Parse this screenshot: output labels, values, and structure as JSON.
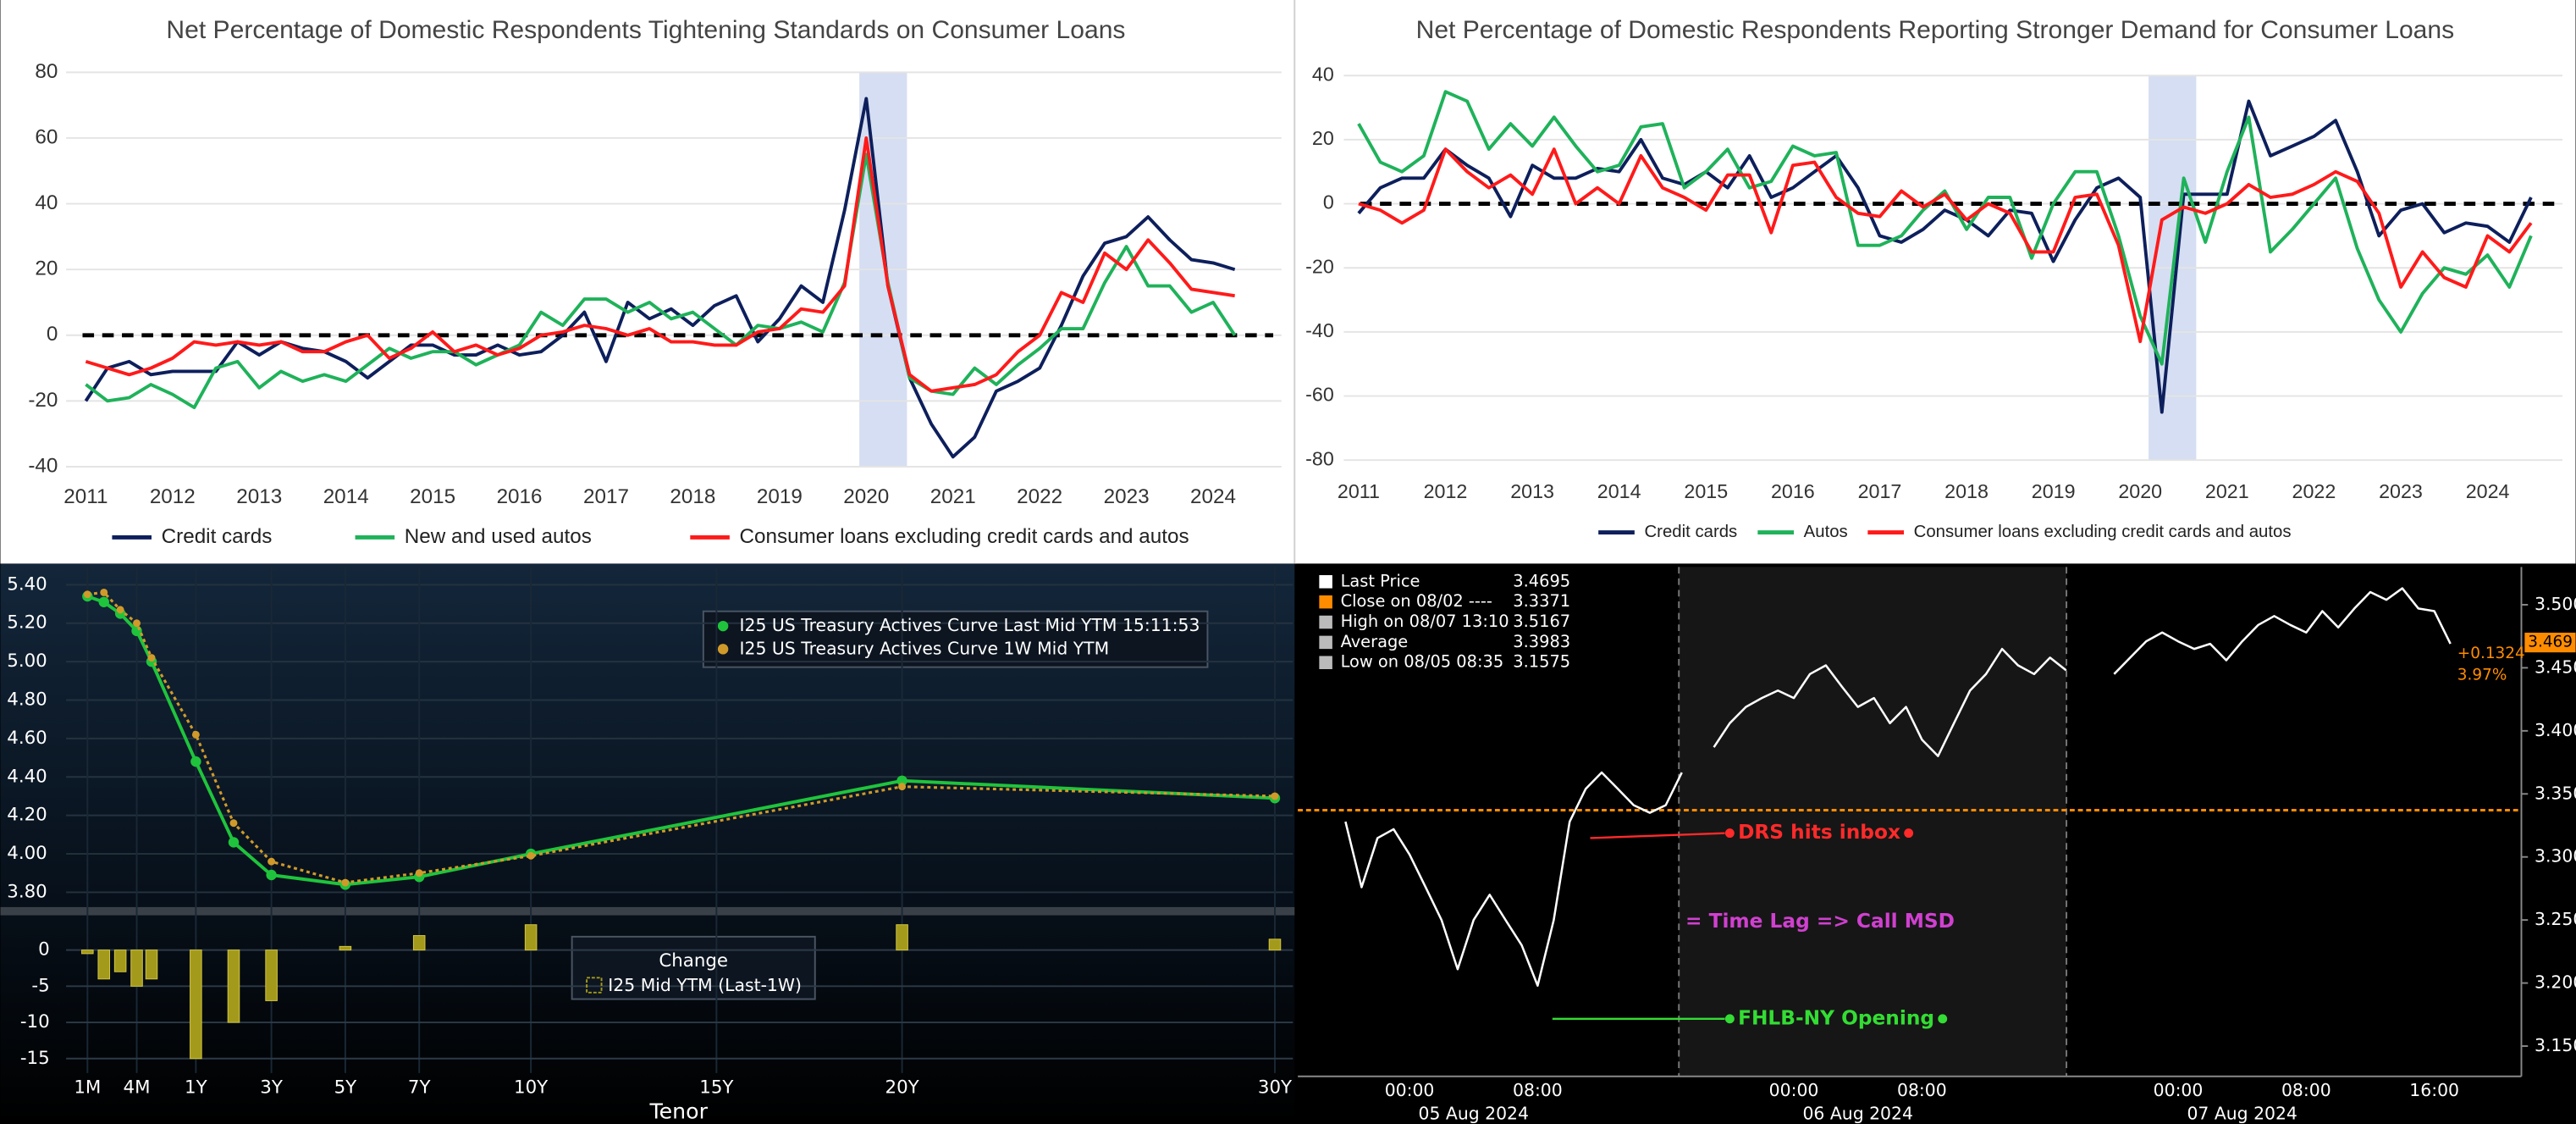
{
  "chart_data": [
    {
      "type": "line",
      "title": "Net Percentage of Domestic Respondents Tightening Standards on Consumer Loans",
      "categories": [
        "2011",
        null,
        null,
        null,
        "2012",
        null,
        null,
        null,
        "2013",
        null,
        null,
        null,
        "2014",
        null,
        null,
        null,
        "2015",
        null,
        null,
        null,
        "2016",
        null,
        null,
        null,
        "2017",
        null,
        null,
        null,
        "2018",
        null,
        null,
        null,
        "2019",
        null,
        null,
        null,
        "2020",
        null,
        null,
        null,
        "2021",
        null,
        null,
        null,
        "2022",
        null,
        null,
        null,
        "2023",
        null,
        null,
        null,
        "2024",
        null
      ],
      "series": [
        {
          "name": "Credit cards",
          "color": "#0d1f5c",
          "values": [
            -20,
            -10,
            -8,
            -12,
            -11,
            -11,
            -11,
            -2,
            -6,
            -2,
            -4,
            -5,
            -8,
            -13,
            -8,
            -3,
            -3,
            -6,
            -6,
            -3,
            -6,
            -5,
            0,
            7,
            -8,
            10,
            5,
            8,
            3,
            9,
            12,
            -2,
            5,
            15,
            10,
            38,
            72,
            15,
            -13,
            -27,
            -37,
            -31,
            -17,
            -14,
            -10,
            3,
            18,
            28,
            30,
            36,
            29,
            23,
            22,
            20
          ]
        },
        {
          "name": "New and used autos",
          "color": "#1fb25a",
          "values": [
            -15,
            -20,
            -19,
            -15,
            -18,
            -22,
            -10,
            -8,
            -16,
            -11,
            -14,
            -12,
            -14,
            -9,
            -4,
            -7,
            -5,
            -5,
            -9,
            -6,
            -3,
            7,
            3,
            11,
            11,
            7,
            10,
            5,
            7,
            2,
            -3,
            3,
            2,
            4,
            1,
            16,
            55,
            16,
            -13,
            -17,
            -18,
            -10,
            -15,
            -9,
            -4,
            2,
            2,
            16,
            27,
            15,
            15,
            7,
            10,
            0
          ]
        },
        {
          "name": "Consumer loans excluding credit cards and autos",
          "color": "#ff1a1a",
          "values": [
            -8,
            -10,
            -12,
            -10,
            -7,
            -2,
            -3,
            -2,
            -3,
            -2,
            -5,
            -5,
            -2,
            0,
            -7,
            -4,
            1,
            -5,
            -3,
            -6,
            -4,
            0,
            1,
            3,
            2,
            0,
            2,
            -2,
            -2,
            -3,
            -3,
            1,
            2,
            8,
            7,
            15,
            60,
            15,
            -12,
            -17,
            -16,
            -15,
            -12,
            -5,
            0,
            13,
            10,
            25,
            20,
            29,
            22,
            14,
            13,
            12
          ]
        }
      ],
      "ylim": [
        -40,
        80
      ],
      "yticks": [
        -40,
        -20,
        0,
        20,
        40,
        60,
        80
      ],
      "grid": true,
      "reference_line": 0
    },
    {
      "type": "line",
      "title": "Net Percentage of Domestic Respondents Reporting Stronger Demand for Consumer Loans",
      "categories": [
        "2011",
        null,
        null,
        null,
        "2012",
        null,
        null,
        null,
        "2013",
        null,
        null,
        null,
        "2014",
        null,
        null,
        null,
        "2015",
        null,
        null,
        null,
        "2016",
        null,
        null,
        null,
        "2017",
        null,
        null,
        null,
        "2018",
        null,
        null,
        null,
        "2019",
        null,
        null,
        null,
        "2020",
        null,
        null,
        null,
        "2021",
        null,
        null,
        null,
        "2022",
        null,
        null,
        null,
        "2023",
        null,
        null,
        null,
        "2024",
        null,
        null
      ],
      "series": [
        {
          "name": "Credit cards",
          "color": "#0d1f5c",
          "values": [
            -3,
            5,
            8,
            8,
            17,
            12,
            8,
            -4,
            12,
            8,
            8,
            11,
            10,
            20,
            8,
            6,
            10,
            5,
            15,
            2,
            5,
            10,
            15,
            5,
            -10,
            -12,
            -8,
            -2,
            -5,
            -10,
            -2,
            -3,
            -18,
            -5,
            5,
            8,
            2,
            -65,
            3,
            3,
            3,
            32,
            15,
            18,
            21,
            26,
            10,
            -10,
            -2,
            0,
            -9,
            -6,
            -7,
            -12,
            2
          ]
        },
        {
          "name": "Autos",
          "color": "#1fb25a",
          "values": [
            25,
            13,
            10,
            15,
            35,
            32,
            17,
            25,
            18,
            27,
            18,
            10,
            12,
            24,
            25,
            5,
            10,
            17,
            5,
            7,
            18,
            15,
            16,
            -13,
            -13,
            -10,
            -2,
            4,
            -8,
            2,
            2,
            -17,
            0,
            10,
            10,
            -10,
            -35,
            -50,
            8,
            -12,
            10,
            27,
            -15,
            -8,
            0,
            8,
            -14,
            -30,
            -40,
            -28,
            -20,
            -22,
            -16,
            -26,
            -10
          ]
        },
        {
          "name": "Consumer loans excluding credit cards and autos",
          "color": "#ff1a1a",
          "values": [
            0,
            -2,
            -6,
            -2,
            17,
            10,
            5,
            9,
            3,
            17,
            0,
            5,
            0,
            15,
            5,
            2,
            -2,
            9,
            9,
            -9,
            12,
            13,
            2,
            -3,
            -4,
            4,
            -1,
            3,
            -5,
            0,
            -3,
            -15,
            -15,
            2,
            3,
            -13,
            -43,
            -5,
            -1,
            -3,
            0,
            6,
            2,
            3,
            6,
            10,
            7,
            -3,
            -26,
            -15,
            -23,
            -26,
            -10,
            -15,
            -6
          ]
        }
      ],
      "ylim": [
        -80,
        40
      ],
      "yticks": [
        -80,
        -60,
        -40,
        -20,
        0,
        20,
        40
      ],
      "grid": true,
      "reference_line": 0
    },
    {
      "type": "line",
      "xlabel": "Tenor",
      "x": [
        0.0833,
        0.1667,
        0.25,
        0.3333,
        0.5,
        1,
        2,
        3,
        5,
        7,
        10,
        20,
        30
      ],
      "series": [
        {
          "name": "I25 US Treasury Actives Curve Last Mid YTM 15:11:53",
          "color": "#1fc43c",
          "marker": "circle",
          "values": [
            5.34,
            5.31,
            5.25,
            5.16,
            5.0,
            4.48,
            4.06,
            3.89,
            3.84,
            3.88,
            4.0,
            4.38,
            4.29
          ]
        },
        {
          "name": "I25 US Treasury Actives Curve 1W Mid YTM",
          "color": "#d09a2a",
          "marker": "circle",
          "style": "dotted",
          "values": [
            5.35,
            5.36,
            5.27,
            5.2,
            5.02,
            4.62,
            4.16,
            3.96,
            3.85,
            3.9,
            3.99,
            4.35,
            4.3
          ]
        }
      ],
      "xticks": [
        {
          "value": 0.0833,
          "label": "1M"
        },
        {
          "value": 0.3333,
          "label": "4M"
        },
        {
          "value": 1,
          "label": "1Y"
        },
        {
          "value": 3,
          "label": "3Y"
        },
        {
          "value": 5,
          "label": "5Y"
        },
        {
          "value": 7,
          "label": "7Y"
        },
        {
          "value": 10,
          "label": "10Y"
        },
        {
          "value": 15,
          "label": "15Y"
        },
        {
          "value": 20,
          "label": "20Y"
        },
        {
          "value": 30,
          "label": "30Y"
        }
      ],
      "ylim": [
        3.74,
        5.45
      ],
      "yticks": [
        {
          "value": 5.4,
          "label": "5.40"
        },
        {
          "value": 5.2,
          "label": "5.20"
        },
        {
          "value": 5.0,
          "label": "5.00"
        },
        {
          "value": 4.8,
          "label": "4.80"
        },
        {
          "value": 4.6,
          "label": "4.60"
        },
        {
          "value": 4.4,
          "label": "4.40"
        },
        {
          "value": 4.2,
          "label": "4.20"
        },
        {
          "value": 4.0,
          "label": "4.00"
        },
        {
          "value": 3.8,
          "label": "3.80"
        }
      ],
      "grid": true
    },
    {
      "type": "bar",
      "title": "Change",
      "x": [
        0.0833,
        0.1667,
        0.25,
        0.3333,
        0.5,
        1,
        2,
        3,
        5,
        7,
        10,
        20,
        30
      ],
      "series": [
        {
          "name": "I25 Mid YTM (Last-1W)",
          "color": "#a39a1c",
          "values": [
            -0.5,
            -4,
            -3,
            -5,
            -4,
            -15,
            -10,
            -7,
            0.5,
            2,
            3.5,
            3.5,
            1.5
          ]
        }
      ],
      "ylim": [
        -17,
        4.8
      ],
      "yticks": [
        0,
        -5,
        -10,
        -15
      ],
      "grid": true
    },
    {
      "type": "line",
      "categories": [
        null,
        null,
        null,
        null,
        "00:00",
        null,
        null,
        null,
        null,
        null,
        null,
        null,
        "08:00",
        null,
        null,
        null,
        null,
        null,
        null,
        null,
        null,
        null,
        null,
        null,
        null,
        null,
        null,
        null,
        "00:00",
        null,
        null,
        null,
        null,
        null,
        null,
        null,
        "08:00",
        null,
        null,
        null,
        null,
        null,
        null,
        null,
        null,
        null,
        null,
        null,
        null,
        null,
        null,
        null,
        "00:00",
        null,
        null,
        null,
        null,
        null,
        null,
        null,
        "08:00",
        null,
        null,
        null,
        null,
        null,
        null,
        null,
        "16:00",
        null
      ],
      "date_labels": [
        "05 Aug 2024",
        "06 Aug 2024",
        "07 Aug 2024"
      ],
      "series": [
        {
          "name": "Last Price",
          "color": "#ffffff",
          "last_value": 3.4695,
          "values": [
            3.328,
            3.276,
            3.315,
            3.322,
            3.302,
            3.276,
            3.25,
            3.211,
            3.25,
            3.27,
            3.25,
            3.23,
            3.198,
            3.25,
            3.328,
            3.354,
            3.367,
            3.354,
            3.341,
            3.335,
            3.341,
            3.367,
            null,
            3.387,
            3.406,
            3.419,
            3.426,
            3.432,
            3.426,
            3.445,
            3.452,
            3.435,
            3.419,
            3.426,
            3.406,
            3.419,
            3.393,
            3.38,
            3.406,
            3.432,
            3.445,
            3.465,
            3.452,
            3.445,
            3.458,
            3.448,
            null,
            null,
            3.445,
            3.458,
            3.471,
            3.478,
            3.471,
            3.465,
            3.469,
            3.456,
            3.471,
            3.484,
            3.491,
            3.484,
            3.478,
            3.495,
            3.482,
            3.497,
            3.51,
            3.504,
            3.513,
            3.497,
            3.495,
            3.469
          ]
        }
      ],
      "stats": [
        {
          "label": "Close on 08/02 ----",
          "value": 3.3371,
          "color": "#ff8c00"
        },
        {
          "label": "High on 08/07 13:10",
          "value": 3.5167
        },
        {
          "label": "Average",
          "value": 3.3983
        },
        {
          "label": "Low on 08/05 08:35",
          "value": 3.1575
        }
      ],
      "annotations": [
        "DRS hits inbox",
        "= Time Lag => Call MSD",
        "FHLB-NY Opening"
      ],
      "side_labels": [
        "3.469",
        "+0.1324",
        "3.97%"
      ],
      "ylim": [
        3.126,
        3.53
      ],
      "yticks": [
        {
          "value": 3.5,
          "label": "3.500"
        },
        {
          "value": 3.45,
          "label": "3.450"
        },
        {
          "value": 3.4,
          "label": "3.400"
        },
        {
          "value": 3.35,
          "label": "3.350"
        },
        {
          "value": 3.3,
          "label": "3.300"
        },
        {
          "value": 3.25,
          "label": "3.250"
        },
        {
          "value": 3.2,
          "label": "3.200"
        },
        {
          "value": 3.15,
          "label": "3.150"
        }
      ],
      "grid": false
    }
  ]
}
